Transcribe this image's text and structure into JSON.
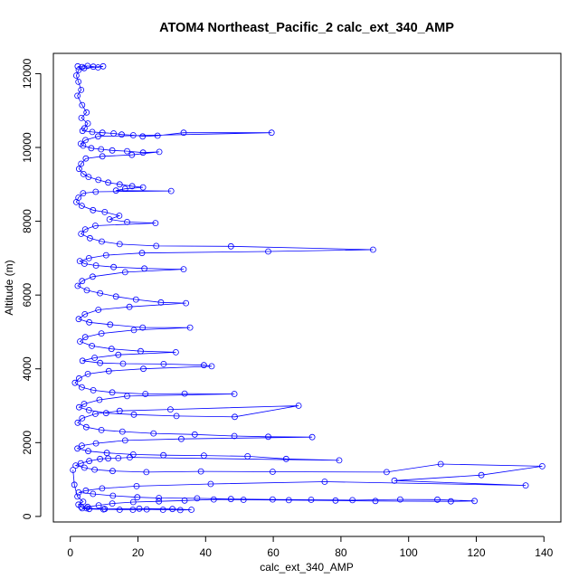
{
  "chart_data": {
    "type": "scatter",
    "title": "ATOM4 Northeast_Pacific_2 calc_ext_340_AMP",
    "xlabel": "calc_ext_340_AMP",
    "ylabel": "Altitude (m)",
    "xlim": [
      -5,
      145
    ],
    "ylim": [
      -150,
      12550
    ],
    "xticks": [
      0,
      20,
      40,
      60,
      80,
      100,
      120,
      140
    ],
    "yticks": [
      0,
      2000,
      4000,
      6000,
      8000,
      10000,
      12000
    ],
    "grid": false,
    "marker": "open-circle",
    "connected": true,
    "series_color": "#0000ff",
    "series": [
      {
        "points": [
          [
            2.2,
            12200
          ],
          [
            3.5,
            12180
          ],
          [
            5.1,
            12210
          ],
          [
            6.8,
            12190
          ],
          [
            8.2,
            12170
          ],
          [
            9.7,
            12200
          ],
          [
            4.1,
            12150
          ],
          [
            2.5,
            12100
          ],
          [
            1.8,
            11950
          ],
          [
            2.4,
            11780
          ],
          [
            3.2,
            11560
          ],
          [
            2.1,
            11400
          ],
          [
            3.5,
            11150
          ],
          [
            4.8,
            10950
          ],
          [
            3.3,
            10800
          ],
          [
            5.2,
            10650
          ],
          [
            4.2,
            10520
          ],
          [
            3.6,
            10450
          ],
          [
            6.5,
            10420
          ],
          [
            9.5,
            10400
          ],
          [
            12.8,
            10380
          ],
          [
            15.2,
            10350
          ],
          [
            18.6,
            10330
          ],
          [
            21.4,
            10300
          ],
          [
            25.8,
            10320
          ],
          [
            33.5,
            10400
          ],
          [
            59.5,
            10400
          ],
          [
            8.2,
            10300
          ],
          [
            4.5,
            10200
          ],
          [
            3.1,
            10100
          ],
          [
            3.8,
            10050
          ],
          [
            6.2,
            9980
          ],
          [
            9.1,
            9950
          ],
          [
            12.4,
            9920
          ],
          [
            16.8,
            9900
          ],
          [
            21.5,
            9860
          ],
          [
            26.3,
            9880
          ],
          [
            18.2,
            9800
          ],
          [
            9.5,
            9760
          ],
          [
            4.6,
            9700
          ],
          [
            3.2,
            9560
          ],
          [
            2.6,
            9420
          ],
          [
            3.9,
            9280
          ],
          [
            5.4,
            9200
          ],
          [
            8.3,
            9120
          ],
          [
            11.2,
            9050
          ],
          [
            14.6,
            9000
          ],
          [
            18.3,
            8950
          ],
          [
            21.5,
            8920
          ],
          [
            16.2,
            8880
          ],
          [
            13.5,
            8830
          ],
          [
            29.8,
            8820
          ],
          [
            7.5,
            8800
          ],
          [
            3.8,
            8760
          ],
          [
            2.4,
            8640
          ],
          [
            1.8,
            8520
          ],
          [
            3.4,
            8420
          ],
          [
            6.7,
            8300
          ],
          [
            10.2,
            8250
          ],
          [
            14.5,
            8150
          ],
          [
            11.6,
            8050
          ],
          [
            16.8,
            7980
          ],
          [
            25.2,
            7950
          ],
          [
            7.4,
            7880
          ],
          [
            4.4,
            7780
          ],
          [
            3.2,
            7660
          ],
          [
            5.8,
            7540
          ],
          [
            9.3,
            7450
          ],
          [
            14.6,
            7380
          ],
          [
            25.4,
            7330
          ],
          [
            47.5,
            7320
          ],
          [
            89.5,
            7230
          ],
          [
            58.5,
            7180
          ],
          [
            21.2,
            7140
          ],
          [
            10.6,
            7080
          ],
          [
            5.5,
            7000
          ],
          [
            2.8,
            6920
          ],
          [
            4.2,
            6850
          ],
          [
            7.6,
            6800
          ],
          [
            12.8,
            6760
          ],
          [
            21.9,
            6720
          ],
          [
            33.5,
            6700
          ],
          [
            16.2,
            6620
          ],
          [
            6.6,
            6500
          ],
          [
            3.5,
            6380
          ],
          [
            2.2,
            6250
          ],
          [
            4.9,
            6130
          ],
          [
            8.8,
            6050
          ],
          [
            13.5,
            5960
          ],
          [
            19.4,
            5880
          ],
          [
            26.8,
            5800
          ],
          [
            34.2,
            5780
          ],
          [
            17.5,
            5680
          ],
          [
            8.3,
            5600
          ],
          [
            4.3,
            5480
          ],
          [
            2.5,
            5350
          ],
          [
            5.6,
            5260
          ],
          [
            11.8,
            5200
          ],
          [
            21.4,
            5120
          ],
          [
            35.4,
            5120
          ],
          [
            18.8,
            5050
          ],
          [
            9.2,
            4960
          ],
          [
            4.4,
            4860
          ],
          [
            2.9,
            4740
          ],
          [
            6.4,
            4620
          ],
          [
            12.2,
            4540
          ],
          [
            20.8,
            4480
          ],
          [
            31.2,
            4450
          ],
          [
            14.2,
            4380
          ],
          [
            7.2,
            4300
          ],
          [
            3.6,
            4220
          ],
          [
            8.8,
            4160
          ],
          [
            15.6,
            4140
          ],
          [
            27.6,
            4130
          ],
          [
            39.5,
            4100
          ],
          [
            41.8,
            4070
          ],
          [
            21.6,
            4000
          ],
          [
            11.4,
            3940
          ],
          [
            5.2,
            3860
          ],
          [
            2.6,
            3740
          ],
          [
            1.4,
            3620
          ],
          [
            3.4,
            3500
          ],
          [
            6.8,
            3420
          ],
          [
            12.4,
            3360
          ],
          [
            22.2,
            3320
          ],
          [
            33.8,
            3330
          ],
          [
            48.5,
            3320
          ],
          [
            16.8,
            3260
          ],
          [
            8.6,
            3160
          ],
          [
            4.1,
            3050
          ],
          [
            2.6,
            2960
          ],
          [
            5.5,
            2880
          ],
          [
            10.6,
            2800
          ],
          [
            18.8,
            2760
          ],
          [
            31.4,
            2720
          ],
          [
            48.6,
            2700
          ],
          [
            67.5,
            3000
          ],
          [
            29.6,
            2900
          ],
          [
            14.6,
            2860
          ],
          [
            7.4,
            2780
          ],
          [
            3.5,
            2660
          ],
          [
            2.2,
            2540
          ],
          [
            4.7,
            2420
          ],
          [
            9.2,
            2340
          ],
          [
            15.4,
            2300
          ],
          [
            24.6,
            2250
          ],
          [
            36.8,
            2220
          ],
          [
            48.5,
            2180
          ],
          [
            58.5,
            2160
          ],
          [
            71.5,
            2150
          ],
          [
            32.8,
            2100
          ],
          [
            16.2,
            2060
          ],
          [
            7.6,
            1980
          ],
          [
            3.4,
            1920
          ],
          [
            2.1,
            1840
          ],
          [
            5.3,
            1770
          ],
          [
            10.8,
            1720
          ],
          [
            18.6,
            1680
          ],
          [
            27.5,
            1660
          ],
          [
            39.5,
            1650
          ],
          [
            52.4,
            1630
          ],
          [
            63.8,
            1560
          ],
          [
            79.5,
            1520
          ],
          [
            17.6,
            1600
          ],
          [
            14.2,
            1580
          ],
          [
            11.2,
            1570
          ],
          [
            8.8,
            1560
          ],
          [
            5.6,
            1500
          ],
          [
            3.1,
            1440
          ],
          [
            1.6,
            1380
          ],
          [
            4.2,
            1320
          ],
          [
            7.2,
            1270
          ],
          [
            12.5,
            1230
          ],
          [
            22.5,
            1200
          ],
          [
            38.6,
            1220
          ],
          [
            59.8,
            1210
          ],
          [
            93.5,
            1200
          ],
          [
            109.5,
            1420
          ],
          [
            139.5,
            1360
          ],
          [
            121.5,
            1120
          ],
          [
            95.8,
            970
          ],
          [
            134.6,
            840
          ],
          [
            75.2,
            940
          ],
          [
            41.5,
            880
          ],
          [
            19.6,
            820
          ],
          [
            9.4,
            760
          ],
          [
            4.6,
            700
          ],
          [
            2.5,
            650
          ],
          [
            6.7,
            610
          ],
          [
            12.6,
            560
          ],
          [
            19.8,
            520
          ],
          [
            26.2,
            500
          ],
          [
            37.5,
            490
          ],
          [
            47.5,
            470
          ],
          [
            59.8,
            460
          ],
          [
            71.2,
            450
          ],
          [
            83.4,
            440
          ],
          [
            97.5,
            460
          ],
          [
            108.5,
            455
          ],
          [
            119.5,
            420
          ],
          [
            112.5,
            410
          ],
          [
            90.2,
            420
          ],
          [
            78.4,
            430
          ],
          [
            64.6,
            440
          ],
          [
            51.2,
            450
          ],
          [
            42.4,
            460
          ],
          [
            33.8,
            430
          ],
          [
            26.2,
            410
          ],
          [
            18.6,
            390
          ],
          [
            12.4,
            350
          ],
          [
            8.4,
            300
          ],
          [
            5.1,
            260
          ],
          [
            3.5,
            220
          ],
          [
            5.6,
            200
          ],
          [
            9.8,
            190
          ],
          [
            14.6,
            180
          ],
          [
            18.5,
            180
          ],
          [
            22.6,
            190
          ],
          [
            27.4,
            180
          ],
          [
            32.5,
            170
          ],
          [
            35.8,
            180
          ],
          [
            30.2,
            200
          ],
          [
            20.4,
            210
          ],
          [
            10.2,
            200
          ],
          [
            4.8,
            220
          ],
          [
            3.2,
            260
          ],
          [
            2.4,
            320
          ],
          [
            3.8,
            400
          ],
          [
            2.1,
            540
          ],
          [
            1.2,
            860
          ],
          [
            0.8,
            1260
          ]
        ]
      }
    ]
  }
}
